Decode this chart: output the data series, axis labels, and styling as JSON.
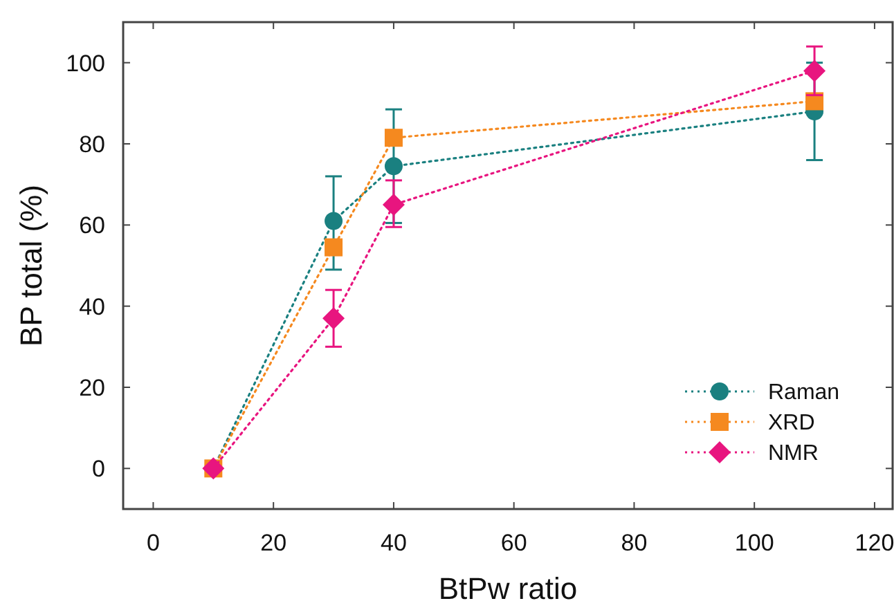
{
  "chart_data": {
    "type": "line",
    "xlabel": "BtPw ratio",
    "ylabel": "BP total (%)",
    "x": [
      10,
      30,
      40,
      110
    ],
    "xlim": [
      -5,
      123
    ],
    "xticks": [
      0,
      20,
      40,
      60,
      80,
      100,
      120
    ],
    "ylim": [
      -10,
      110
    ],
    "yticks": [
      0,
      20,
      40,
      60,
      80,
      100
    ],
    "grid": false,
    "legend": "bottom right",
    "line_style": "dotted",
    "series": [
      {
        "name": "Raman",
        "color": "#1a8080",
        "marker": "circle",
        "values": [
          0,
          61,
          74.5,
          88
        ],
        "errors": [
          null,
          [
            49,
            72
          ],
          [
            60.5,
            88.5
          ],
          [
            76,
            100
          ]
        ]
      },
      {
        "name": "XRD",
        "color": "#f5891f",
        "marker": "square",
        "values": [
          0,
          54.5,
          81.5,
          90.5
        ]
      },
      {
        "name": "NMR",
        "color": "#e8157f",
        "marker": "diamond",
        "values": [
          0,
          37,
          65,
          98
        ],
        "errors": [
          null,
          [
            30,
            44
          ],
          [
            59.5,
            71
          ],
          [
            92,
            104
          ]
        ]
      }
    ]
  }
}
